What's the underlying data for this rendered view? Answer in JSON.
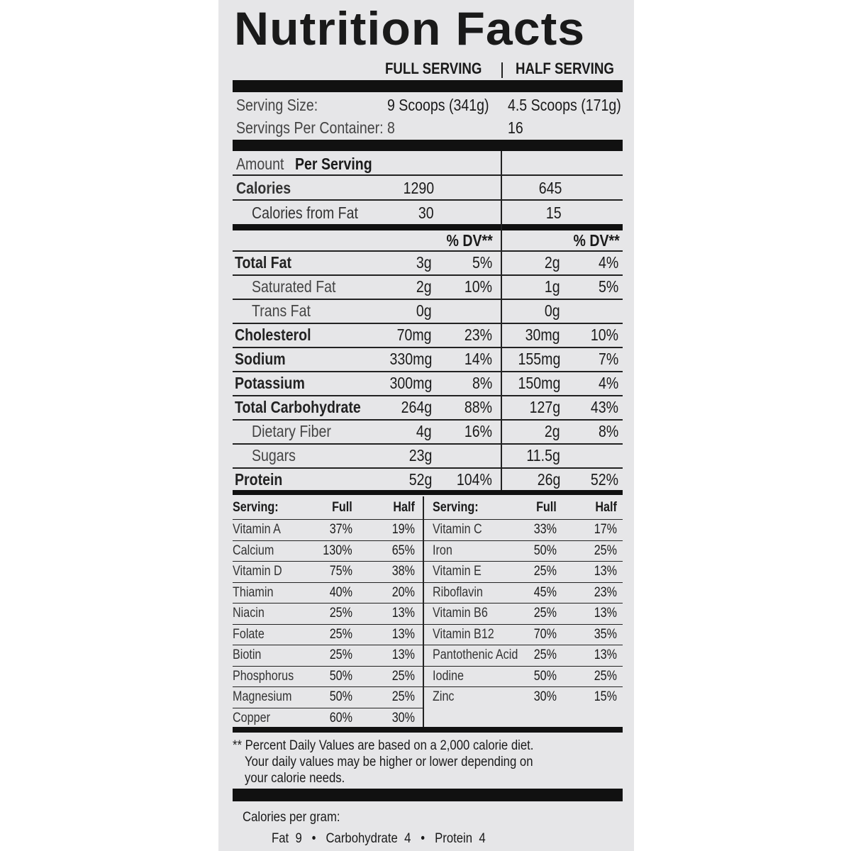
{
  "title": "Nutrition Facts",
  "headers": {
    "full": "FULL SERVING",
    "half": "HALF SERVING"
  },
  "serving": {
    "size_label": "Serving Size:",
    "size_full": "9 Scoops (341g)",
    "size_half": "4.5 Scoops (171g)",
    "per_container_label": "Servings Per Container: 8",
    "per_container_half": "16"
  },
  "amount_per_serving": {
    "amount": "Amount",
    "per_serving": "Per Serving"
  },
  "calories": {
    "label": "Calories",
    "full": "1290",
    "half": "645"
  },
  "calories_from_fat": {
    "label": "Calories from Fat",
    "full": "30",
    "half": "15"
  },
  "dv_label": "% DV**",
  "nutrients": [
    {
      "name": "Total Fat",
      "bold": true,
      "indent": false,
      "full": "3g",
      "full_dv": "5%",
      "half": "2g",
      "half_dv": "4%"
    },
    {
      "name": "Saturated Fat",
      "bold": false,
      "indent": true,
      "full": "2g",
      "full_dv": "10%",
      "half": "1g",
      "half_dv": "5%"
    },
    {
      "name": "Trans Fat",
      "bold": false,
      "indent": true,
      "italic_prefix": "Trans",
      "full": "0g",
      "full_dv": "",
      "half": "0g",
      "half_dv": ""
    },
    {
      "name": "Cholesterol",
      "bold": true,
      "indent": false,
      "full": "70mg",
      "full_dv": "23%",
      "half": "30mg",
      "half_dv": "10%"
    },
    {
      "name": "Sodium",
      "bold": true,
      "indent": false,
      "full": "330mg",
      "full_dv": "14%",
      "half": "155mg",
      "half_dv": "7%"
    },
    {
      "name": "Potassium",
      "bold": true,
      "indent": false,
      "full": "300mg",
      "full_dv": "8%",
      "half": "150mg",
      "half_dv": "4%"
    },
    {
      "name": "Total Carbohydrate",
      "bold": true,
      "indent": false,
      "full": "264g",
      "full_dv": "88%",
      "half": "127g",
      "half_dv": "43%"
    },
    {
      "name": "Dietary Fiber",
      "bold": false,
      "indent": true,
      "full": "4g",
      "full_dv": "16%",
      "half": "2g",
      "half_dv": "8%"
    },
    {
      "name": "Sugars",
      "bold": false,
      "indent": true,
      "full": "23g",
      "full_dv": "",
      "half": "11.5g",
      "half_dv": ""
    },
    {
      "name": "Protein",
      "bold": true,
      "indent": false,
      "full": "52g",
      "full_dv": "104%",
      "half": "26g",
      "half_dv": "52%"
    }
  ],
  "vitamin_headers": {
    "serving": "Serving:",
    "full": "Full",
    "half": "Half"
  },
  "vitamins_left": [
    {
      "name": "Vitamin A",
      "full": "37%",
      "half": "19%"
    },
    {
      "name": "Calcium",
      "full": "130%",
      "half": "65%"
    },
    {
      "name": "Vitamin D",
      "full": "75%",
      "half": "38%"
    },
    {
      "name": "Thiamin",
      "full": "40%",
      "half": "20%"
    },
    {
      "name": "Niacin",
      "full": "25%",
      "half": "13%"
    },
    {
      "name": "Folate",
      "full": "25%",
      "half": "13%"
    },
    {
      "name": "Biotin",
      "full": "25%",
      "half": "13%"
    },
    {
      "name": "Phosphorus",
      "full": "50%",
      "half": "25%"
    },
    {
      "name": "Magnesium",
      "full": "50%",
      "half": "25%"
    },
    {
      "name": "Copper",
      "full": "60%",
      "half": "30%"
    }
  ],
  "vitamins_right": [
    {
      "name": "Vitamin C",
      "full": "33%",
      "half": "17%"
    },
    {
      "name": "Iron",
      "full": "50%",
      "half": "25%"
    },
    {
      "name": "Vitamin E",
      "full": "25%",
      "half": "13%"
    },
    {
      "name": "Riboflavin",
      "full": "45%",
      "half": "23%"
    },
    {
      "name": "Vitamin B6",
      "full": "25%",
      "half": "13%"
    },
    {
      "name": "Vitamin B12",
      "full": "70%",
      "half": "35%"
    },
    {
      "name": "Pantothenic Acid",
      "full": "25%",
      "half": "13%"
    },
    {
      "name": "Iodine",
      "full": "50%",
      "half": "25%"
    },
    {
      "name": "Zinc",
      "full": "30%",
      "half": "15%"
    }
  ],
  "footnote": [
    "** Percent Daily Values are based on a 2,000 calorie diet.",
    "Your daily values may be higher or lower depending on",
    "your calorie needs."
  ],
  "calories_per_gram": {
    "label": "Calories per gram:",
    "line": "Fat  9   •   Carbohydrate  4   •   Protein  4"
  }
}
